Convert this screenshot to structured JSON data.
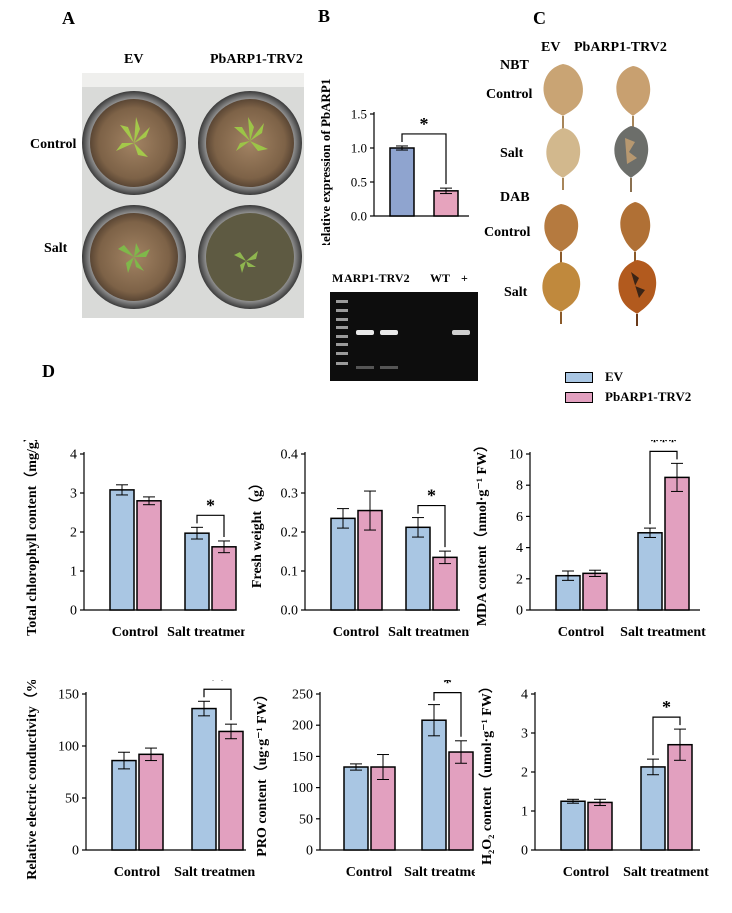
{
  "panels": {
    "A": "A",
    "B": "B",
    "C": "C",
    "D": "D"
  },
  "panel_a": {
    "col_ev": "EV",
    "col_trv": "PbARP1-TRV2",
    "row_control": "Control",
    "row_salt": "Salt"
  },
  "panel_c": {
    "col_ev": "EV",
    "col_trv": "PbARP1-TRV2",
    "nbt": "NBT",
    "control1": "Control",
    "salt1": "Salt",
    "dab": "DAB",
    "control2": "Control",
    "salt2": "Salt"
  },
  "gel": {
    "m": "M",
    "arp": "ARP1-TRV2",
    "wt": "WT",
    "plus": "+"
  },
  "legend": {
    "ev": "EV",
    "trv": "PbARP1-TRV2"
  },
  "colors": {
    "ev": "#a9c6e3",
    "trv": "#e2a0bf",
    "bar_b_ev": "#8fa4cf",
    "bar_b_trv": "#e6a3bd"
  },
  "chart_data": [
    {
      "id": "B",
      "type": "bar",
      "ylabel": "Relative expression of PbARP1",
      "ylim": [
        0,
        1.5
      ],
      "ticks": [
        0,
        0.5,
        1.0,
        1.5
      ],
      "tick_labels": [
        "0.0",
        "0.5",
        "1.0",
        "1.5"
      ],
      "categories": [
        ""
      ],
      "series": [
        {
          "name": "EV",
          "values": [
            1.0
          ],
          "errors": [
            0.03
          ]
        },
        {
          "name": "PbARP1-TRV2",
          "values": [
            0.37
          ],
          "errors": [
            0.04
          ]
        }
      ],
      "sig": [
        "*"
      ]
    },
    {
      "id": "chl",
      "type": "bar",
      "ylabel": "Total chlorophyll content（mg/g）",
      "ylim": [
        0,
        4
      ],
      "ticks": [
        0,
        1,
        2,
        3,
        4
      ],
      "tick_labels": [
        "0",
        "1",
        "2",
        "3",
        "4"
      ],
      "categories": [
        "Control",
        "Salt treatment"
      ],
      "series": [
        {
          "name": "EV",
          "values": [
            3.08,
            1.97
          ],
          "errors": [
            0.13,
            0.15
          ]
        },
        {
          "name": "PbARP1-TRV2",
          "values": [
            2.8,
            1.62
          ],
          "errors": [
            0.1,
            0.15
          ]
        }
      ],
      "sig": [
        "",
        "*"
      ]
    },
    {
      "id": "fw",
      "type": "bar",
      "ylabel": "Fresh weight（g）",
      "ylim": [
        0,
        0.4
      ],
      "ticks": [
        0,
        0.1,
        0.2,
        0.3,
        0.4
      ],
      "tick_labels": [
        "0.0",
        "0.1",
        "0.2",
        "0.3",
        "0.4"
      ],
      "categories": [
        "Control",
        "Salt treatment"
      ],
      "series": [
        {
          "name": "EV",
          "values": [
            0.235,
            0.212
          ],
          "errors": [
            0.025,
            0.025
          ]
        },
        {
          "name": "PbARP1-TRV2",
          "values": [
            0.255,
            0.135
          ],
          "errors": [
            0.05,
            0.016
          ]
        }
      ],
      "sig": [
        "",
        "*"
      ]
    },
    {
      "id": "mda",
      "type": "bar",
      "ylabel": "MDA content（nmol·g⁻¹ FW）",
      "ylim": [
        0,
        10
      ],
      "ticks": [
        0,
        2,
        4,
        6,
        8,
        10
      ],
      "tick_labels": [
        "0",
        "2",
        "4",
        "6",
        "8",
        "10"
      ],
      "categories": [
        "Control",
        "Salt treatment"
      ],
      "series": [
        {
          "name": "EV",
          "values": [
            2.2,
            4.95
          ],
          "errors": [
            0.3,
            0.3
          ]
        },
        {
          "name": "PbARP1-TRV2",
          "values": [
            2.35,
            8.5
          ],
          "errors": [
            0.2,
            0.9
          ]
        }
      ],
      "sig": [
        "",
        "***"
      ]
    },
    {
      "id": "rec",
      "type": "bar",
      "ylabel": "Relative electric conductivity（%）",
      "ylim": [
        0,
        150
      ],
      "ticks": [
        0,
        50,
        100,
        150
      ],
      "tick_labels": [
        "0",
        "50",
        "100",
        "150"
      ],
      "categories": [
        "Control",
        "Salt treatment"
      ],
      "series": [
        {
          "name": "EV",
          "values": [
            86,
            136
          ],
          "errors": [
            8,
            7
          ]
        },
        {
          "name": "PbARP1-TRV2",
          "values": [
            92,
            114
          ],
          "errors": [
            6,
            7
          ]
        }
      ],
      "sig": [
        "",
        "**"
      ]
    },
    {
      "id": "pro",
      "type": "bar",
      "ylabel": "PRO content（ug·g⁻¹ FW）",
      "ylim": [
        0,
        250
      ],
      "ticks": [
        0,
        50,
        100,
        150,
        200,
        250
      ],
      "tick_labels": [
        "0",
        "50",
        "100",
        "150",
        "200",
        "250"
      ],
      "categories": [
        "Control",
        "Salt treatment"
      ],
      "series": [
        {
          "name": "EV",
          "values": [
            133,
            208
          ],
          "errors": [
            5,
            25
          ]
        },
        {
          "name": "PbARP1-TRV2",
          "values": [
            133,
            157
          ],
          "errors": [
            20,
            18
          ]
        }
      ],
      "sig": [
        "",
        "*"
      ]
    },
    {
      "id": "h2o2",
      "type": "bar",
      "ylabel": "H₂O₂ content（umol·g⁻¹ FW）",
      "ylim": [
        0,
        4
      ],
      "ticks": [
        0,
        1,
        2,
        3,
        4
      ],
      "tick_labels": [
        "0",
        "1",
        "2",
        "3",
        "4"
      ],
      "categories": [
        "Control",
        "Salt treatment"
      ],
      "series": [
        {
          "name": "EV",
          "values": [
            1.25,
            2.13
          ],
          "errors": [
            0.05,
            0.2
          ]
        },
        {
          "name": "PbARP1-TRV2",
          "values": [
            1.22,
            2.7
          ],
          "errors": [
            0.08,
            0.4
          ]
        }
      ],
      "sig": [
        "",
        "*"
      ]
    }
  ]
}
